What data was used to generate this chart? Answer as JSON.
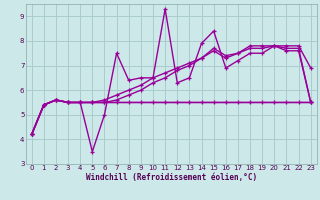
{
  "xlabel": "Windchill (Refroidissement éolien,°C)",
  "xlim": [
    0,
    23
  ],
  "ylim": [
    3,
    9.5
  ],
  "yticks": [
    3,
    4,
    5,
    6,
    7,
    8,
    9
  ],
  "xticks": [
    0,
    1,
    2,
    3,
    4,
    5,
    6,
    7,
    8,
    9,
    10,
    11,
    12,
    13,
    14,
    15,
    16,
    17,
    18,
    19,
    20,
    21,
    22,
    23
  ],
  "bg_color": "#cce8e8",
  "grid_color": "#aacccc",
  "line_color": "#990099",
  "line1": [
    4.2,
    5.4,
    5.6,
    5.5,
    5.5,
    3.5,
    5.0,
    7.5,
    6.4,
    6.5,
    6.5,
    9.3,
    6.3,
    6.5,
    7.9,
    8.4,
    6.9,
    7.2,
    7.5,
    7.5,
    7.8,
    7.8,
    7.8,
    6.9
  ],
  "line2": [
    4.2,
    5.4,
    5.6,
    5.5,
    5.5,
    5.5,
    5.6,
    5.8,
    6.0,
    6.2,
    6.5,
    6.7,
    6.9,
    7.1,
    7.3,
    7.6,
    7.3,
    7.5,
    7.7,
    7.7,
    7.8,
    7.6,
    7.6,
    5.5
  ],
  "line3": [
    4.2,
    5.4,
    5.6,
    5.5,
    5.5,
    5.5,
    5.5,
    5.6,
    5.8,
    6.0,
    6.3,
    6.5,
    6.8,
    7.0,
    7.3,
    7.7,
    7.4,
    7.5,
    7.8,
    7.8,
    7.8,
    7.7,
    7.7,
    5.5
  ],
  "line4": [
    4.2,
    5.4,
    5.6,
    5.5,
    5.5,
    5.5,
    5.5,
    5.5,
    5.5,
    5.5,
    5.5,
    5.5,
    5.5,
    5.5,
    5.5,
    5.5,
    5.5,
    5.5,
    5.5,
    5.5,
    5.5,
    5.5,
    5.5,
    5.5
  ]
}
